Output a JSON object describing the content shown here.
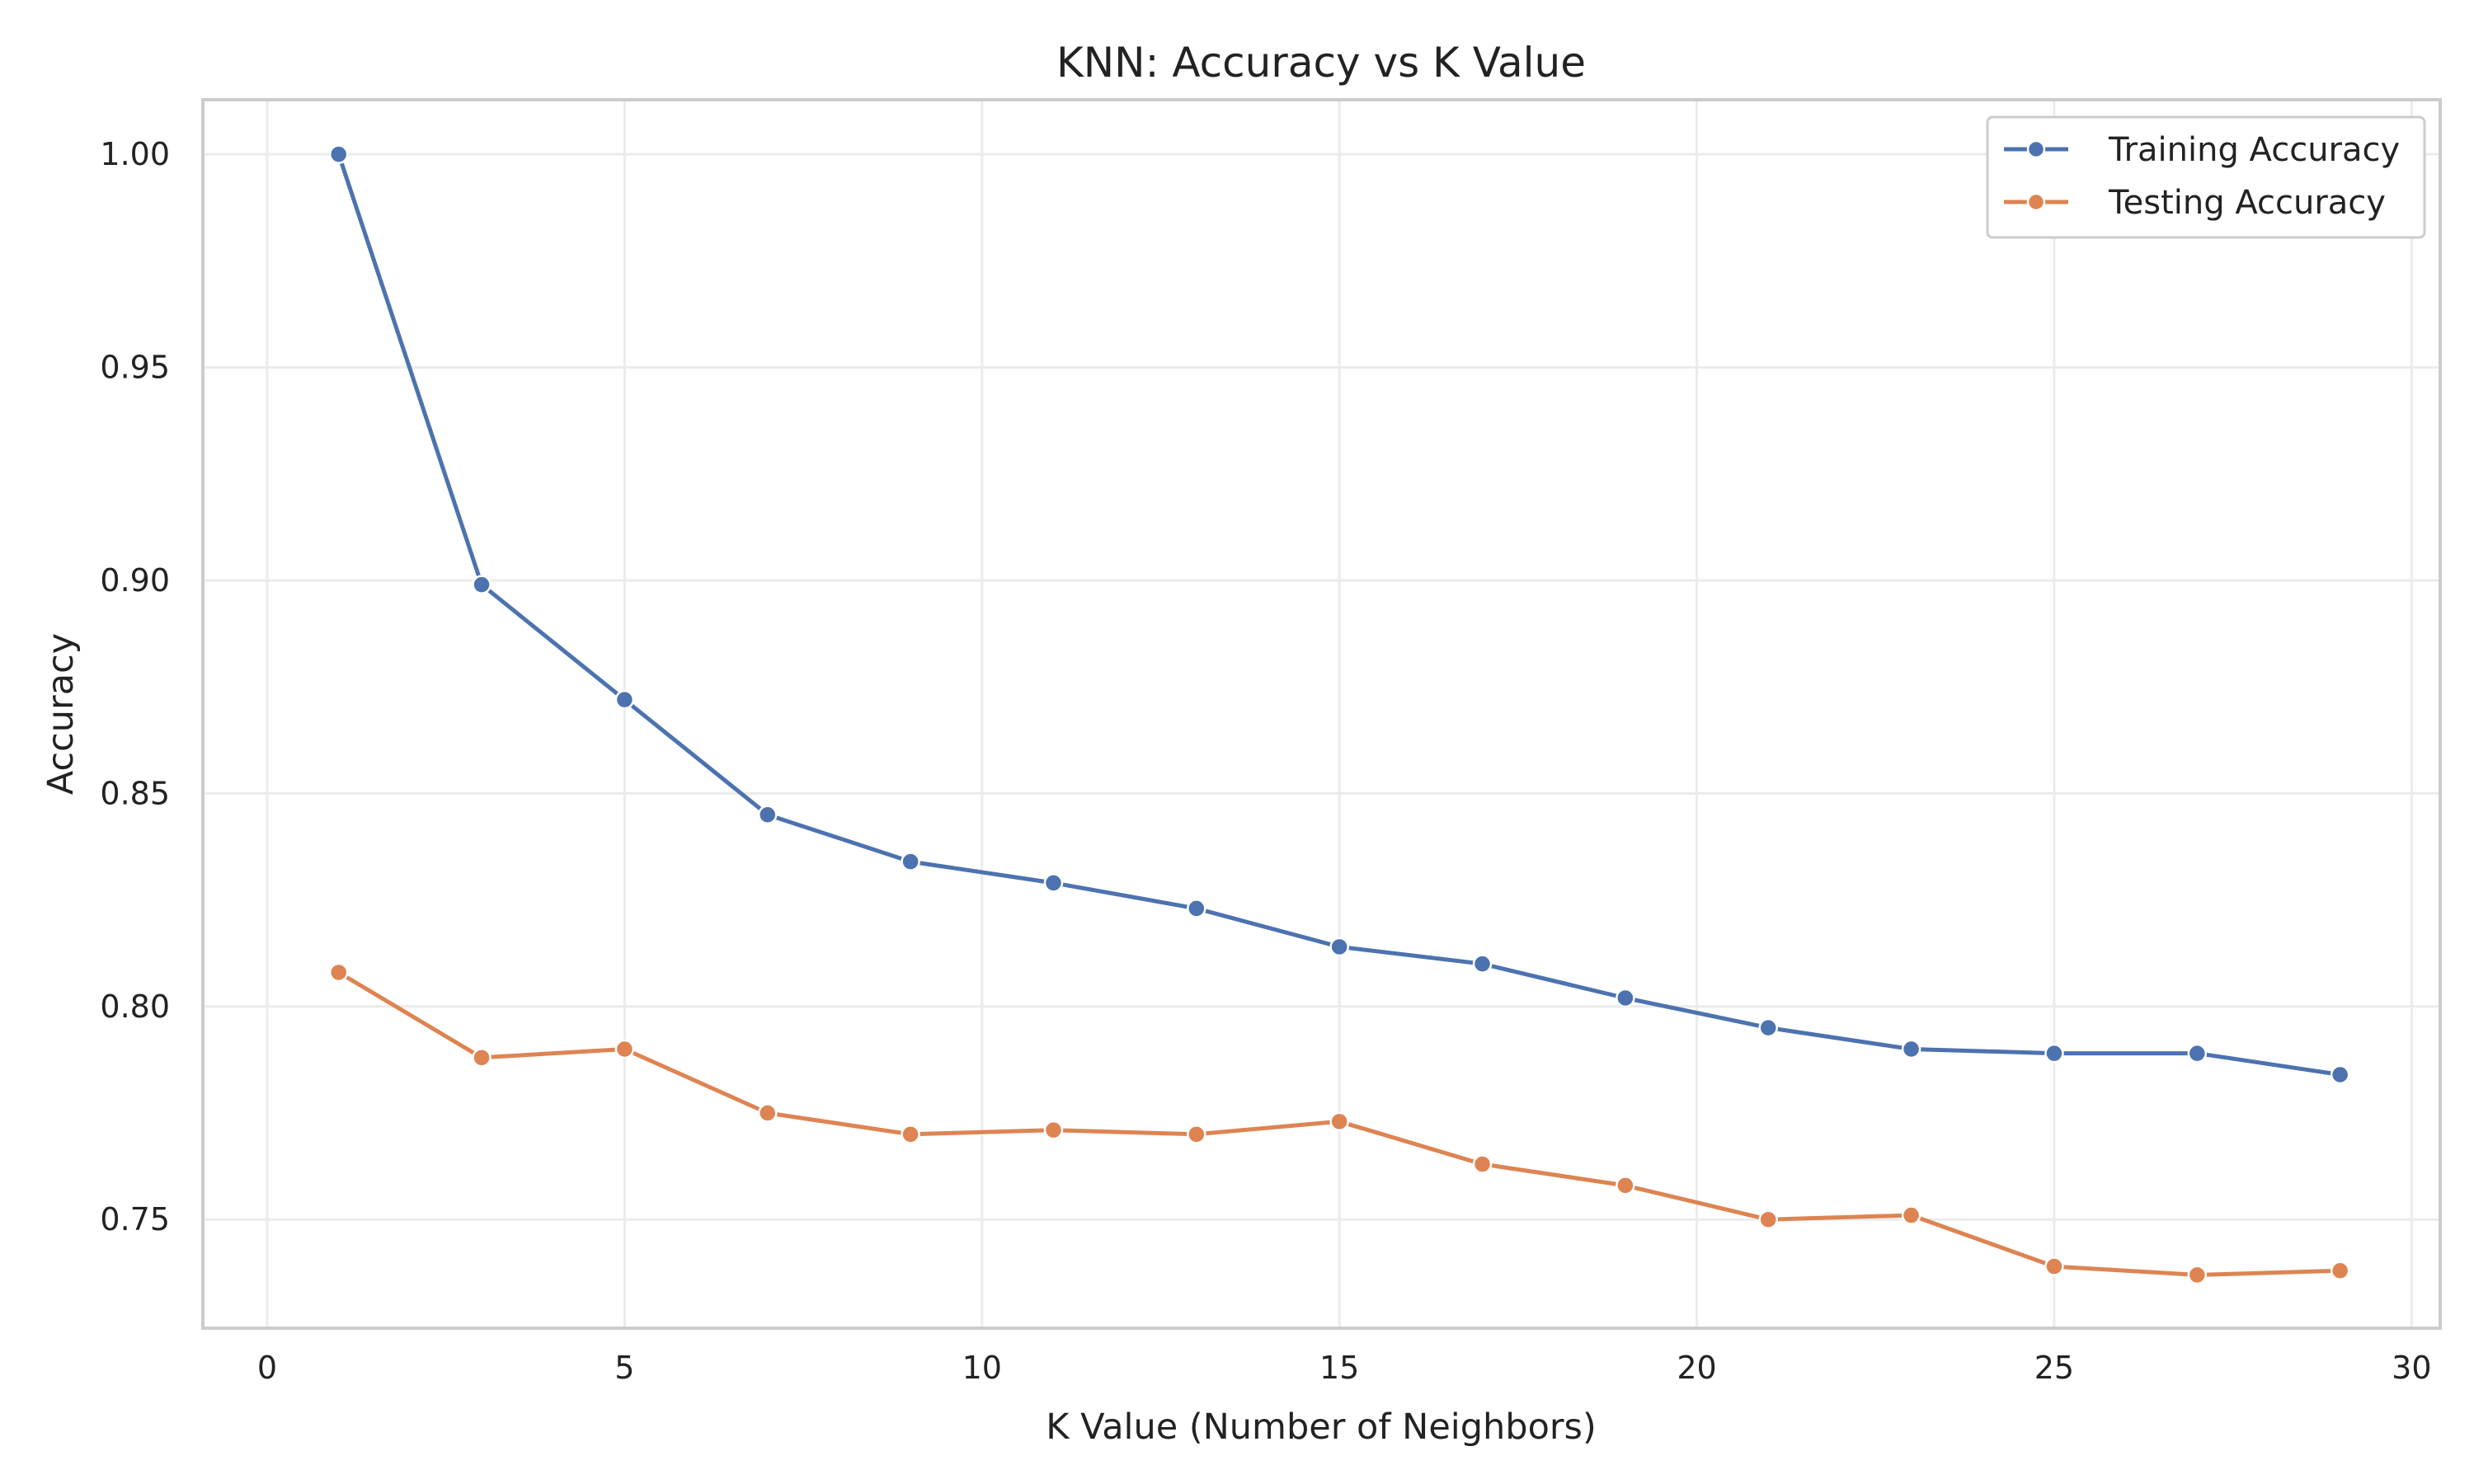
{
  "chart_data": {
    "type": "line",
    "title": "KNN: Accuracy vs K Value",
    "xlabel": "K Value (Number of Neighbors)",
    "ylabel": "Accuracy",
    "xlim": [
      -0.9,
      30.4
    ],
    "ylim": [
      0.7245,
      1.0128
    ],
    "x_ticks": [
      0,
      5,
      10,
      15,
      20,
      25,
      30
    ],
    "x_tick_labels": [
      "0",
      "5",
      "10",
      "15",
      "20",
      "25",
      "30"
    ],
    "y_ticks": [
      0.75,
      0.8,
      0.85,
      0.9,
      0.95,
      1.0
    ],
    "y_tick_labels": [
      "0.75",
      "0.80",
      "0.85",
      "0.90",
      "0.95",
      "1.00"
    ],
    "grid": true,
    "legend_position": "top-right",
    "x": [
      1,
      3,
      5,
      7,
      9,
      11,
      13,
      15,
      17,
      19,
      21,
      23,
      25,
      27,
      29
    ],
    "series": [
      {
        "name": "Training Accuracy",
        "color": "#4c72b0",
        "marker": "circle",
        "values": [
          1.0,
          0.899,
          0.872,
          0.845,
          0.834,
          0.829,
          0.823,
          0.814,
          0.81,
          0.802,
          0.795,
          0.79,
          0.789,
          0.789,
          0.784
        ]
      },
      {
        "name": "Testing Accuracy",
        "color": "#dd8452",
        "marker": "circle",
        "values": [
          0.808,
          0.788,
          0.79,
          0.775,
          0.77,
          0.771,
          0.77,
          0.773,
          0.763,
          0.758,
          0.75,
          0.751,
          0.739,
          0.737,
          0.738
        ]
      }
    ]
  }
}
